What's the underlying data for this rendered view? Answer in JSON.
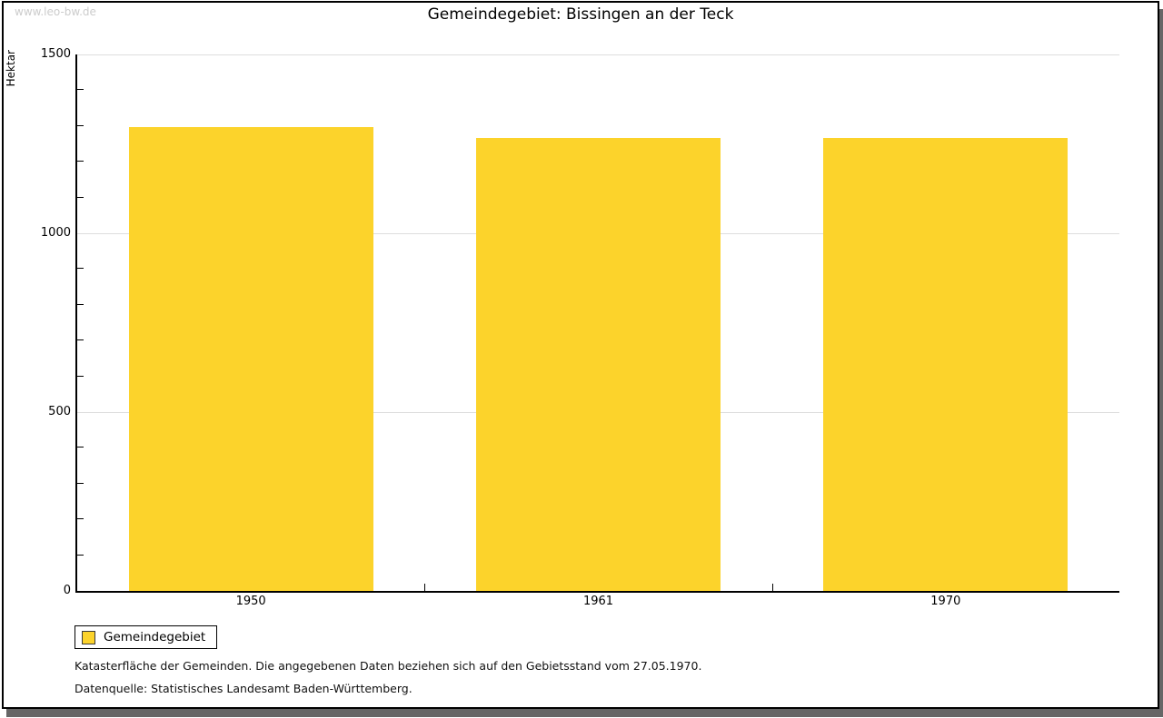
{
  "watermark": "www.leo-bw.de",
  "title": "Gemeindegebiet: Bissingen an der Teck",
  "chart_data": {
    "type": "bar",
    "categories": [
      "1950",
      "1961",
      "1970"
    ],
    "series": [
      {
        "name": "Gemeindegebiet",
        "values": [
          1298,
          1266,
          1266
        ]
      }
    ],
    "title": "Gemeindegebiet: Bissingen an der Teck",
    "xlabel": "",
    "ylabel": "Hektar",
    "ylim": [
      0,
      1500
    ],
    "yticks": [
      0,
      500,
      1000,
      1500
    ],
    "y_minor_tick_step": 100,
    "grid": "horizontal",
    "legend_position": "bottom-left",
    "bar_color": "#FCD32B"
  },
  "legend": {
    "items": [
      {
        "label": "Gemeindegebiet",
        "color": "#FCD32B"
      }
    ]
  },
  "footer": {
    "note": "Katasterfläche der Gemeinden. Die angegebenen Daten beziehen sich auf den Gebietsstand vom 27.05.1970.",
    "source": "Datenquelle: Statistisches Landesamt Baden-Württemberg."
  },
  "colors": {
    "bar": "#FCD32B",
    "grid": "#DDDDDD",
    "axis": "#000000",
    "watermark": "#CCCCCC",
    "frame_shadow": "#666666"
  }
}
